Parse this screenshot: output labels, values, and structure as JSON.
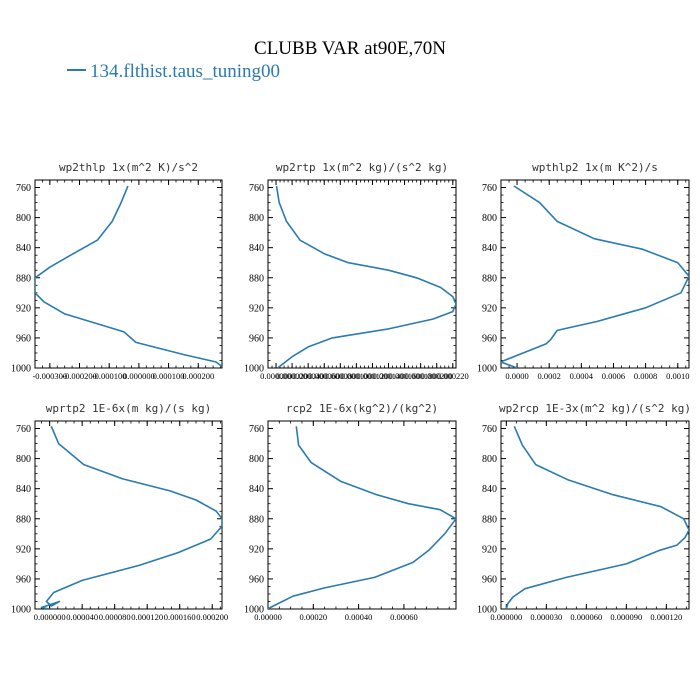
{
  "figure": {
    "title": "CLUBB VAR at90E,70N",
    "legend_label": "134.flthist.taus_tuning00",
    "series_color": "#2a7bb0"
  },
  "chart_data": [
    {
      "type": "line",
      "title": "wp2thlp  1x(m^2 K)/s^2",
      "xlim": [
        -0.00035,
        0.00028
      ],
      "ylim": [
        1000,
        750
      ],
      "yticks": [
        760,
        800,
        840,
        880,
        920,
        960,
        1000
      ],
      "xtick_values": [
        -0.0003,
        -0.0002,
        -0.0001,
        0.0,
        0.0001,
        0.0002
      ],
      "xtick_labels": [
        "-0.000300",
        "-0.000200",
        "-0.000100",
        "0.000000",
        "0.000100",
        "0.000200"
      ],
      "series": [
        {
          "x": [
            -3.7e-05,
            -6e-05,
            -9e-05,
            -0.00014,
            -0.00023,
            -0.0003,
            -0.00035,
            -0.00035,
            -0.00032,
            -0.00025,
            -0.00015,
            -5e-05,
            -1e-05,
            0.00015,
            0.00026,
            0.00028
          ],
          "y": [
            758,
            780,
            805,
            830,
            850,
            866,
            880,
            900,
            912,
            928,
            940,
            952,
            966,
            982,
            992,
            998
          ]
        }
      ]
    },
    {
      "type": "line",
      "title": "wp2rtp  1x(m^2 kg)/(s^2 kg)",
      "xlim": [
        -1e-05,
        0.000224
      ],
      "ylim": [
        1000,
        750
      ],
      "yticks": [
        760,
        800,
        840,
        880,
        920,
        960,
        1000
      ],
      "xtick_values": [
        0.0,
        2e-05,
        4e-05,
        6e-05,
        8e-05,
        0.0001,
        0.00012,
        0.00014,
        0.00016,
        0.00018,
        0.0002,
        0.00022
      ],
      "xtick_labels": [
        "0.000000",
        "0.000020",
        "0.000040",
        "0.000060",
        "0.000080",
        "0.000100",
        "0.000120",
        "0.000140",
        "0.000160",
        "0.000180",
        "0.000200",
        "0.000220"
      ],
      "series": [
        {
          "x": [
            6e-07,
            4e-06,
            1.3e-05,
            3e-05,
            6e-05,
            9e-05,
            0.00014,
            0.000175,
            0.000205,
            0.00022,
            0.000224,
            0.00022,
            0.000195,
            0.00014,
            7e-05,
            4e-05,
            2e-05,
            2e-06
          ],
          "y": [
            758,
            780,
            805,
            830,
            848,
            860,
            870,
            880,
            893,
            905,
            915,
            925,
            935,
            948,
            960,
            972,
            985,
            1000
          ]
        }
      ]
    },
    {
      "type": "line",
      "title": "wpthlp2  1x(m K^2)/s",
      "xlim": [
        -0.0001,
        0.00107
      ],
      "ylim": [
        1000,
        750
      ],
      "yticks": [
        760,
        800,
        840,
        880,
        920,
        960,
        1000
      ],
      "xtick_values": [
        0.0,
        0.0002,
        0.0004,
        0.0006,
        0.0008,
        0.001
      ],
      "xtick_labels": [
        "0.0000",
        "0.0002",
        "0.0004",
        "0.0006",
        "0.0008",
        "0.0010"
      ],
      "series": [
        {
          "x": [
            -2e-05,
            0.00014,
            0.00025,
            0.00048,
            0.00078,
            0.001,
            0.00107,
            0.00102,
            0.0008,
            0.0005,
            0.00025,
            0.00021,
            0.00018,
            -8e-05,
            -0.0001,
            0.0
          ],
          "y": [
            758,
            780,
            805,
            828,
            842,
            860,
            878,
            900,
            920,
            938,
            950,
            962,
            968,
            990,
            992,
            1000
          ]
        }
      ]
    },
    {
      "type": "line",
      "title": "wprtp2  1E-6x(m kg)/(s kg)",
      "xlim": [
        -1.8e-05,
        0.000212
      ],
      "ylim": [
        1000,
        750
      ],
      "yticks": [
        760,
        800,
        840,
        880,
        920,
        960,
        1000
      ],
      "xtick_values": [
        0.0,
        4e-05,
        8e-05,
        0.00012,
        0.00016,
        0.0002
      ],
      "xtick_labels": [
        "0.000000",
        "0.000040",
        "0.000080",
        "0.000120",
        "0.000160",
        "0.000200"
      ],
      "series": [
        {
          "x": [
            2e-06,
            1.1e-05,
            4.2e-05,
            9e-05,
            0.000148,
            0.00018,
            0.000205,
            0.000212,
            0.000212,
            0.000198,
            0.000158,
            0.00011,
            4e-05,
            5e-06,
            -4e-06,
            2e-06,
            1.2e-05,
            -1e-05,
            0.0
          ],
          "y": [
            757,
            780,
            808,
            827,
            843,
            855,
            870,
            880,
            890,
            907,
            925,
            942,
            962,
            978,
            990,
            996,
            990,
            998,
            1000
          ]
        }
      ]
    },
    {
      "type": "line",
      "title": "rcp2  1E-6x(kg^2)/(kg^2)",
      "xlim": [
        0.0,
        0.00083
      ],
      "ylim": [
        1000,
        750
      ],
      "yticks": [
        760,
        800,
        840,
        880,
        920,
        960,
        1000
      ],
      "xtick_values": [
        0.0,
        0.0002,
        0.0004,
        0.0006
      ],
      "xtick_labels": [
        "0.00000",
        "0.00020",
        "0.00040",
        "0.00060"
      ],
      "series": [
        {
          "x": [
            0.000125,
            0.000135,
            0.00019,
            0.00032,
            0.00048,
            0.00062,
            0.00076,
            0.00083,
            0.00078,
            0.00071,
            0.00064,
            0.00047,
            0.00025,
            0.00011,
            5e-05,
            1e-05,
            0.0
          ],
          "y": [
            757,
            782,
            805,
            830,
            848,
            860,
            868,
            880,
            900,
            922,
            938,
            958,
            972,
            983,
            992,
            998,
            1000
          ]
        }
      ]
    },
    {
      "type": "line",
      "title": "wp2rcp  1E-3x(m^2 kg)/(s^2 kg)",
      "xlim": [
        -4e-06,
        0.000137
      ],
      "ylim": [
        1000,
        750
      ],
      "yticks": [
        760,
        800,
        840,
        880,
        920,
        960,
        1000
      ],
      "xtick_values": [
        0.0,
        3e-05,
        6e-05,
        9e-05,
        0.00012
      ],
      "xtick_labels": [
        "0.000000",
        "0.000030",
        "0.000060",
        "0.000090",
        "0.000120"
      ],
      "series": [
        {
          "x": [
            6e-06,
            1.2e-05,
            2.2e-05,
            4.6e-05,
            8e-05,
            0.000116,
            0.000133,
            0.000137,
            0.000134,
            0.000128,
            0.000115,
            9e-05,
            4.5e-05,
            1.4e-05,
            5e-06,
            1e-06,
            0.0
          ],
          "y": [
            757,
            782,
            808,
            828,
            848,
            864,
            880,
            895,
            905,
            915,
            922,
            940,
            958,
            973,
            984,
            993,
            1000
          ]
        }
      ]
    }
  ]
}
